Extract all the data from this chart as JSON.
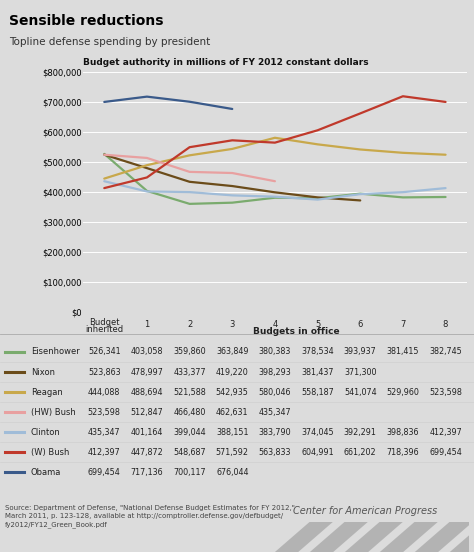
{
  "title": "Sensible reductions",
  "subtitle": "Topline defense spending by president",
  "axis_label": "Budget authority in millions of FY 2012 constant dollars",
  "bg_color": "#dcdcdc",
  "plot_bg_color": "#dcdcdc",
  "ylim": [
    0,
    800000
  ],
  "yticks": [
    0,
    100000,
    200000,
    300000,
    400000,
    500000,
    600000,
    700000,
    800000
  ],
  "presidents": [
    "Eisenhower",
    "Nixon",
    "Reagan",
    "(HW) Bush",
    "Clinton",
    "(W) Bush",
    "Obama"
  ],
  "colors": [
    "#7aab6e",
    "#6b4c1a",
    "#c8a84b",
    "#e8a0a0",
    "#a0bcd8",
    "#c0392b",
    "#3a5a8a"
  ],
  "data": {
    "Eisenhower": [
      526341,
      403058,
      359860,
      363849,
      380383,
      378534,
      393937,
      381415,
      382745
    ],
    "Nixon": [
      523863,
      478997,
      433377,
      419220,
      398293,
      381437,
      371300,
      null,
      null
    ],
    "Reagan": [
      444088,
      488694,
      521588,
      542935,
      580046,
      558187,
      541074,
      529960,
      523598
    ],
    "(HW) Bush": [
      523598,
      512847,
      466480,
      462631,
      435347,
      null,
      null,
      null,
      null
    ],
    "Clinton": [
      435347,
      401164,
      399044,
      388151,
      383790,
      374045,
      392291,
      398836,
      412397
    ],
    "(W) Bush": [
      412397,
      447872,
      548687,
      571592,
      563833,
      604991,
      661202,
      718396,
      699454
    ],
    "Obama": [
      699454,
      717136,
      700117,
      676044,
      null,
      null,
      null,
      null,
      null
    ]
  },
  "table_data": [
    [
      "Eisenhower",
      "526,341",
      "403,058",
      "359,860",
      "363,849",
      "380,383",
      "378,534",
      "393,937",
      "381,415",
      "382,745"
    ],
    [
      "Nixon",
      "523,863",
      "478,997",
      "433,377",
      "419,220",
      "398,293",
      "381,437",
      "371,300",
      "",
      ""
    ],
    [
      "Reagan",
      "444,088",
      "488,694",
      "521,588",
      "542,935",
      "580,046",
      "558,187",
      "541,074",
      "529,960",
      "523,598"
    ],
    [
      "(HW) Bush",
      "523,598",
      "512,847",
      "466,480",
      "462,631",
      "435,347",
      "",
      "",
      "",
      ""
    ],
    [
      "Clinton",
      "435,347",
      "401,164",
      "399,044",
      "388,151",
      "383,790",
      "374,045",
      "392,291",
      "398,836",
      "412,397"
    ],
    [
      "(W) Bush",
      "412,397",
      "447,872",
      "548,687",
      "571,592",
      "563,833",
      "604,991",
      "661,202",
      "718,396",
      "699,454"
    ],
    [
      "Obama",
      "699,454",
      "717,136",
      "700,117",
      "676,044",
      "",
      "",
      "",
      "",
      ""
    ]
  ],
  "source_text": "Source: Department of Defense, \"National Defense Budget Estimates for FY 2012,\"\nMarch 2011, p. 123-128, available at http://comptroller.defense.gov/defbudget/\nfy2012/FY12_Green_Book.pdf",
  "cap_text": "Center for American Progress",
  "x_col_labels": [
    "Budget\ninherited",
    "1",
    "2",
    "3",
    "4",
    "5",
    "6",
    "7",
    "8"
  ]
}
